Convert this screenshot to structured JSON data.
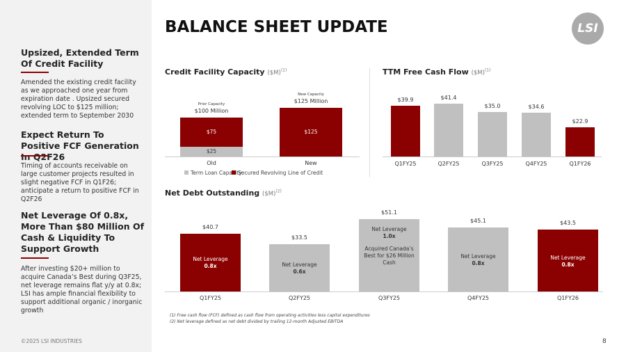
{
  "title": "BALANCE SHEET UPDATE",
  "logo": "LSI",
  "page_number": "8",
  "copyright": "©2025 LSI INDUSTRIES",
  "colors": {
    "accent": "#8b0000",
    "gray": "#c0c0c0"
  },
  "sidebar": [
    {
      "heading": "Upsized, Extended Term Of Credit Facility",
      "body": "Amended the existing credit facility as we approached one year from expiration date . Upsized secured revolving LOC to $125 million; extended term to September 2030"
    },
    {
      "heading": "Expect Return To Positive FCF Generation In Q2F26",
      "body": "Timing of accounts receivable on large customer projects resulted in slight negative FCF in Q1F26; anticipate a return to positive FCF in Q2F26"
    },
    {
      "heading": "Net Leverage Of 0.8x, More Than $80 Million Of Cash & Liquidity To Support Growth",
      "body": "After investing $20+ million to acquire Canada’s Best during Q3F25, net leverage remains flat y/y at 0.8x; LSI has ample financial flexibility to support additional organic / inorganic growth"
    }
  ],
  "footnotes": [
    "(1)   Free cash flow (FCF) defined as cash flow from operating activities less capital expenditures",
    "(2)   Net leverage defined as net debt divided by trailing 12-month Adjusted EBITDA"
  ],
  "chart_data": [
    {
      "type": "bar",
      "stacked": true,
      "title": "Credit Facility Capacity",
      "unit": "($M)",
      "footnote_ref": "(1)",
      "categories": [
        "Old",
        "New"
      ],
      "series": [
        {
          "name": "Term Loan Capacity",
          "values": [
            25,
            0
          ],
          "labels": [
            "$25",
            ""
          ],
          "color": "#c0c0c0"
        },
        {
          "name": "Secured Revolving Line of Credit",
          "values": [
            75,
            125
          ],
          "labels": [
            "$75",
            "$125"
          ],
          "color": "#8b0000"
        }
      ],
      "annotations": [
        {
          "small": "Prior Capacity",
          "big": "$100 Million"
        },
        {
          "small": "New Capacity",
          "big": "$125 Million"
        }
      ],
      "legend": "bottom"
    },
    {
      "type": "bar",
      "title": "TTM Free Cash Flow",
      "unit": "($M)",
      "footnote_ref": "(1)",
      "categories": [
        "Q1FY25",
        "Q2FY25",
        "Q3FY25",
        "Q4FY25",
        "Q1FY26"
      ],
      "values": [
        39.9,
        41.4,
        35.0,
        34.6,
        22.9
      ],
      "labels": [
        "$39.9",
        "$41.4",
        "$35.0",
        "$34.6",
        "$22.9"
      ],
      "highlight": [
        true,
        false,
        false,
        false,
        true
      ]
    },
    {
      "type": "bar",
      "title": "Net Debt Outstanding",
      "unit": "($M)",
      "footnote_ref": "(2)",
      "categories": [
        "Q1FY25",
        "Q2FY25",
        "Q3FY25",
        "Q4FY25",
        "Q1FY26"
      ],
      "values": [
        40.7,
        33.5,
        51.1,
        45.1,
        43.5
      ],
      "labels": [
        "$40.7",
        "$33.5",
        "$51.1",
        "$45.1",
        "$43.5"
      ],
      "highlight": [
        true,
        false,
        false,
        true,
        true
      ],
      "inner": [
        {
          "l": "Net Leverage",
          "v": "0.8x"
        },
        {
          "l": "Net Leverage",
          "v": "0.6x"
        },
        {
          "l": "Net Leverage",
          "v": "1.0x",
          "note": "Acquired Canada’s Best for $26 Million Cash"
        },
        {
          "l": "Net Leverage",
          "v": "0.8x"
        },
        {
          "l": "Net Leverage",
          "v": "0.8x"
        }
      ]
    }
  ]
}
